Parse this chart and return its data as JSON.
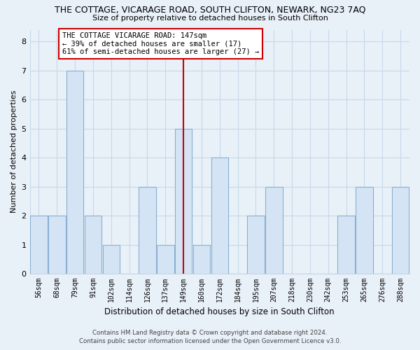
{
  "title": "THE COTTAGE, VICARAGE ROAD, SOUTH CLIFTON, NEWARK, NG23 7AQ",
  "subtitle": "Size of property relative to detached houses in South Clifton",
  "xlabel": "Distribution of detached houses by size in South Clifton",
  "ylabel": "Number of detached properties",
  "bar_labels": [
    "56sqm",
    "68sqm",
    "79sqm",
    "91sqm",
    "102sqm",
    "114sqm",
    "126sqm",
    "137sqm",
    "149sqm",
    "160sqm",
    "172sqm",
    "184sqm",
    "195sqm",
    "207sqm",
    "218sqm",
    "230sqm",
    "242sqm",
    "253sqm",
    "265sqm",
    "276sqm",
    "288sqm"
  ],
  "bar_values": [
    2,
    2,
    7,
    2,
    1,
    0,
    3,
    1,
    5,
    1,
    4,
    0,
    2,
    3,
    0,
    0,
    0,
    2,
    3,
    0,
    3
  ],
  "bar_color": "#d4e4f4",
  "bar_edge_color": "#8ab0d0",
  "highlight_index": 8,
  "annotation_title": "THE COTTAGE VICARAGE ROAD: 147sqm",
  "annotation_line1": "← 39% of detached houses are smaller (17)",
  "annotation_line2": "61% of semi-detached houses are larger (27) →",
  "vline_color": "#cc0000",
  "ylim": [
    0,
    8.4
  ],
  "yticks": [
    0,
    1,
    2,
    3,
    4,
    5,
    6,
    7,
    8
  ],
  "grid_color": "#c8d8e8",
  "bg_color": "#e8f0f8",
  "footer1": "Contains HM Land Registry data © Crown copyright and database right 2024.",
  "footer2": "Contains public sector information licensed under the Open Government Licence v3.0."
}
